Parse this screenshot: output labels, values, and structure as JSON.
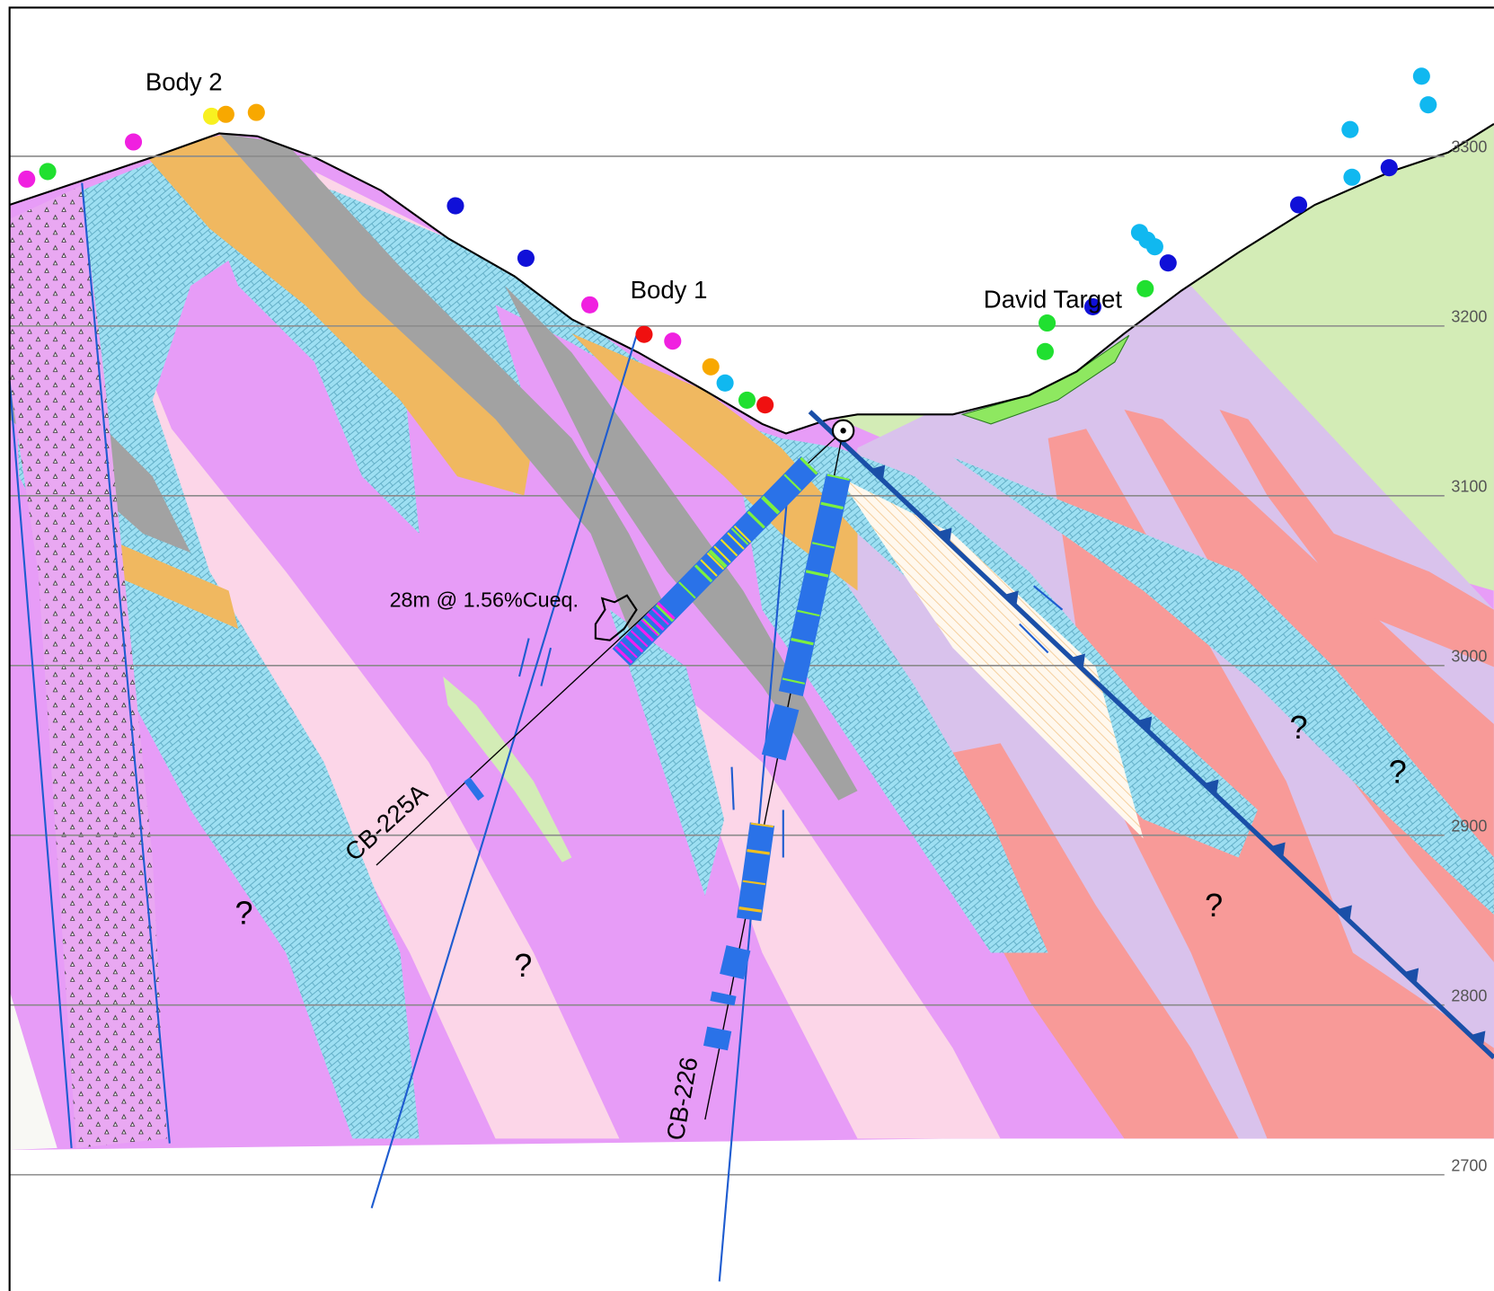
{
  "labels": {
    "body_2": "Body 2",
    "body_1": "Body 1",
    "david_target": "David Target",
    "intercept": "28m @ 1.56%Cueq.",
    "hole_1": "CB-225A",
    "hole_2": "CB-226"
  },
  "elevations": [
    3300,
    3200,
    3100,
    3000,
    2900,
    2800,
    2700
  ],
  "unknown_marks": [
    "?",
    "?",
    "?",
    "?",
    "?"
  ]
}
